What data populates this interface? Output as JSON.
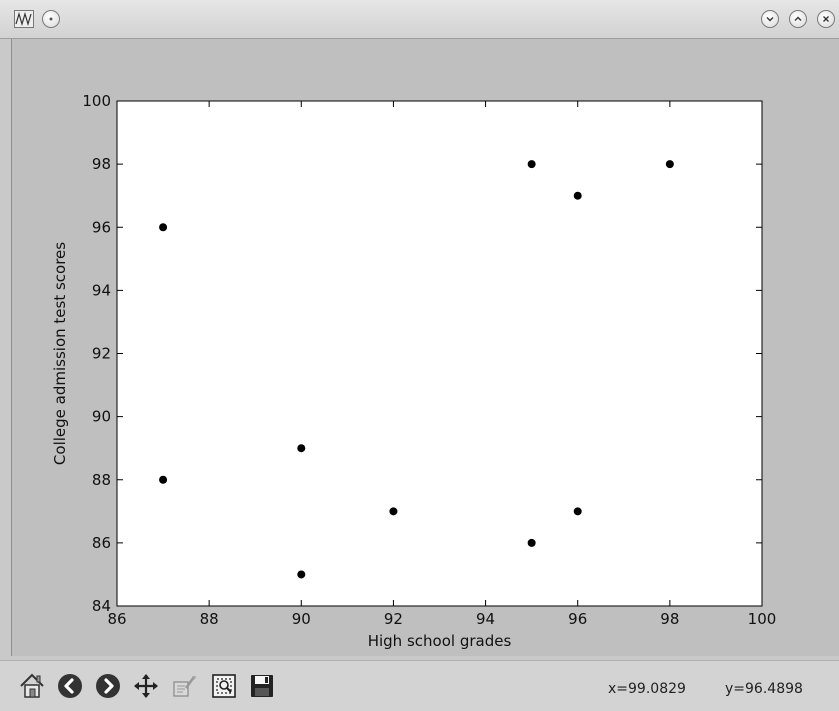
{
  "coords": {
    "x_text": "x=99.0829",
    "y_text": "y=96.4898"
  },
  "toolbar_icons": [
    "home-icon",
    "back-icon",
    "forward-icon",
    "pan-icon",
    "configure-subplots-icon",
    "zoom-rect-icon",
    "save-icon"
  ],
  "chart_data": {
    "type": "scatter",
    "title": "",
    "xlabel": "High school grades",
    "ylabel": "College admission test scores",
    "xlim": [
      86,
      100
    ],
    "ylim": [
      84,
      100
    ],
    "xticks": [
      86,
      88,
      90,
      92,
      94,
      96,
      98,
      100
    ],
    "yticks": [
      84,
      86,
      88,
      90,
      92,
      94,
      96,
      98,
      100
    ],
    "grid": false,
    "marker_color": "#000000",
    "points": [
      {
        "x": 87,
        "y": 96
      },
      {
        "x": 87,
        "y": 88
      },
      {
        "x": 90,
        "y": 89
      },
      {
        "x": 90,
        "y": 85
      },
      {
        "x": 92,
        "y": 87
      },
      {
        "x": 95,
        "y": 98
      },
      {
        "x": 95,
        "y": 86
      },
      {
        "x": 96,
        "y": 97
      },
      {
        "x": 96,
        "y": 87
      },
      {
        "x": 98,
        "y": 98
      }
    ]
  }
}
